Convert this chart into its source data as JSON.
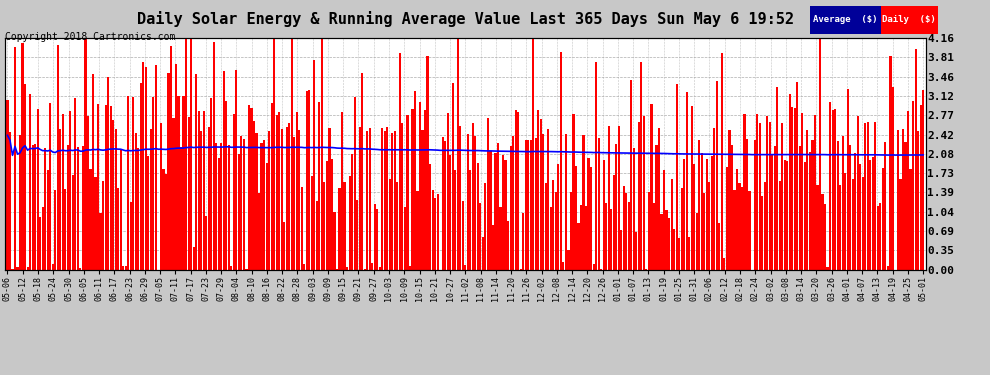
{
  "title": "Daily Solar Energy & Running Average Value Last 365 Days Sun May 6 19:52",
  "copyright": "Copyright 2018 Cartronics.com",
  "ylabel_right": [
    "0.00",
    "0.35",
    "0.69",
    "1.04",
    "1.39",
    "1.73",
    "2.08",
    "2.42",
    "2.77",
    "3.12",
    "3.46",
    "3.81",
    "4.16"
  ],
  "ytick_values": [
    0.0,
    0.35,
    0.69,
    1.04,
    1.39,
    1.73,
    2.08,
    2.42,
    2.77,
    3.12,
    3.46,
    3.81,
    4.16
  ],
  "ymax": 4.16,
  "bar_color": "#ff0000",
  "avg_color": "#0000ff",
  "background_color": "#c8c8c8",
  "plot_bg_color": "#ffffff",
  "grid_color": "#999999",
  "legend_avg_bg": "#000099",
  "legend_daily_bg": "#cc0000",
  "title_fontsize": 11,
  "copyright_fontsize": 7,
  "x_labels": [
    "05-06",
    "05-12",
    "05-18",
    "05-24",
    "05-30",
    "06-05",
    "06-11",
    "06-17",
    "06-23",
    "06-29",
    "07-05",
    "07-11",
    "07-17",
    "07-23",
    "07-29",
    "08-04",
    "08-10",
    "08-16",
    "08-22",
    "08-28",
    "09-03",
    "09-09",
    "09-15",
    "09-21",
    "09-27",
    "10-03",
    "10-09",
    "10-15",
    "10-21",
    "10-27",
    "11-02",
    "11-08",
    "11-14",
    "11-20",
    "11-26",
    "12-02",
    "12-08",
    "12-14",
    "12-20",
    "12-26",
    "01-01",
    "01-07",
    "01-13",
    "01-19",
    "01-25",
    "01-31",
    "02-06",
    "02-12",
    "02-18",
    "02-24",
    "03-02",
    "03-08",
    "03-14",
    "03-20",
    "03-26",
    "04-01",
    "04-07",
    "04-13",
    "04-19",
    "04-25",
    "05-01"
  ]
}
